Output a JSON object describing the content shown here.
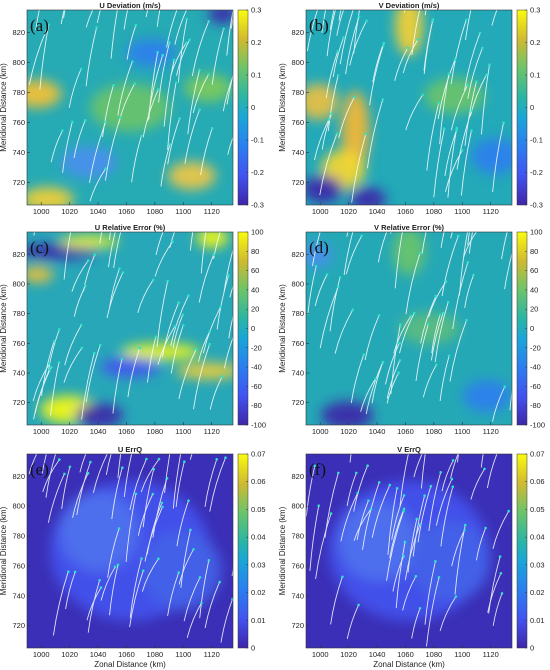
{
  "chart_data": [
    {
      "type": "heatmap",
      "panel_label": "(a)",
      "title": "U Deviation (m/s)",
      "xlabel": "",
      "ylabel": "Meridional Distance (km)",
      "xticks": [
        1000,
        1020,
        1040,
        1060,
        1080,
        1100,
        1120
      ],
      "yticks": [
        720,
        740,
        760,
        780,
        800,
        820
      ],
      "xlim": [
        990,
        1135
      ],
      "ylim": [
        705,
        835
      ],
      "colorbar": {
        "min": -0.3,
        "max": 0.3,
        "ticks": [
          -0.3,
          -0.2,
          -0.1,
          0,
          0.1,
          0.2,
          0.3
        ],
        "colormap": "parula"
      },
      "overlay": "white trajectory streaks with cyan markers"
    },
    {
      "type": "heatmap",
      "panel_label": "(b)",
      "title": "V Deviation (m/s)",
      "xlabel": "",
      "ylabel": "Meridional Distance (km)",
      "xticks": [
        1000,
        1020,
        1040,
        1060,
        1080,
        1100,
        1120
      ],
      "yticks": [
        720,
        740,
        760,
        780,
        800,
        820
      ],
      "xlim": [
        990,
        1135
      ],
      "ylim": [
        705,
        835
      ],
      "colorbar": {
        "min": -0.3,
        "max": 0.3,
        "ticks": [
          -0.3,
          -0.2,
          -0.1,
          0,
          0.1,
          0.2,
          0.3
        ],
        "colormap": "parula"
      },
      "overlay": "white trajectory streaks with cyan markers"
    },
    {
      "type": "heatmap",
      "panel_label": "(c)",
      "title": "U Relative Error (%)",
      "xlabel": "",
      "ylabel": "Meridional Distance (km)",
      "xticks": [
        1000,
        1020,
        1040,
        1060,
        1080,
        1100,
        1120
      ],
      "yticks": [
        720,
        740,
        760,
        780,
        800,
        820
      ],
      "xlim": [
        990,
        1135
      ],
      "ylim": [
        705,
        835
      ],
      "colorbar": {
        "min": -100,
        "max": 100,
        "ticks": [
          -100,
          -80,
          -60,
          -40,
          -20,
          0,
          20,
          40,
          60,
          80,
          100
        ],
        "colormap": "parula"
      },
      "overlay": "white trajectory streaks with cyan markers"
    },
    {
      "type": "heatmap",
      "panel_label": "(d)",
      "title": "V Relative Error (%)",
      "xlabel": "",
      "ylabel": "Meridional Distance (km)",
      "xticks": [
        1000,
        1020,
        1040,
        1060,
        1080,
        1100,
        1120
      ],
      "yticks": [
        720,
        740,
        760,
        780,
        800,
        820
      ],
      "xlim": [
        990,
        1135
      ],
      "ylim": [
        705,
        835
      ],
      "colorbar": {
        "min": -100,
        "max": 100,
        "ticks": [
          -100,
          -80,
          -60,
          -40,
          -20,
          0,
          20,
          40,
          60,
          80,
          100
        ],
        "colormap": "parula"
      },
      "overlay": "white trajectory streaks with cyan markers"
    },
    {
      "type": "heatmap",
      "panel_label": "(e)",
      "title": "U ErrQ",
      "xlabel": "Zonal Distance (km)",
      "ylabel": "Meridional Distance (km)",
      "xticks": [
        1000,
        1020,
        1040,
        1060,
        1080,
        1100,
        1120
      ],
      "yticks": [
        720,
        740,
        760,
        780,
        800,
        820
      ],
      "xlim": [
        990,
        1135
      ],
      "ylim": [
        705,
        835
      ],
      "colorbar": {
        "min": 0,
        "max": 0.07,
        "ticks": [
          0,
          0.01,
          0.02,
          0.03,
          0.04,
          0.05,
          0.06,
          0.07
        ],
        "colormap": "parula"
      },
      "overlay": "white trajectory streaks with cyan markers"
    },
    {
      "type": "heatmap",
      "panel_label": "(f)",
      "title": "V ErrQ",
      "xlabel": "Zonal Distance (km)",
      "ylabel": "Meridional Distance (km)",
      "xticks": [
        1000,
        1020,
        1040,
        1060,
        1080,
        1100,
        1120
      ],
      "yticks": [
        720,
        740,
        760,
        780,
        800,
        820
      ],
      "xlim": [
        990,
        1135
      ],
      "ylim": [
        705,
        835
      ],
      "colorbar": {
        "min": 0,
        "max": 0.07,
        "ticks": [
          0,
          0.01,
          0.02,
          0.03,
          0.04,
          0.05,
          0.06,
          0.07
        ],
        "colormap": "parula"
      },
      "overlay": "white trajectory streaks with cyan markers"
    }
  ],
  "colors": {
    "parula_low": "#3e26a8",
    "parula_blue": "#2b7ef0",
    "parula_teal": "#2ab5a5",
    "parula_green": "#6cc46a",
    "parula_yellow": "#f9fb0e",
    "streak": "#ffffff",
    "marker": "#33e0c8"
  }
}
